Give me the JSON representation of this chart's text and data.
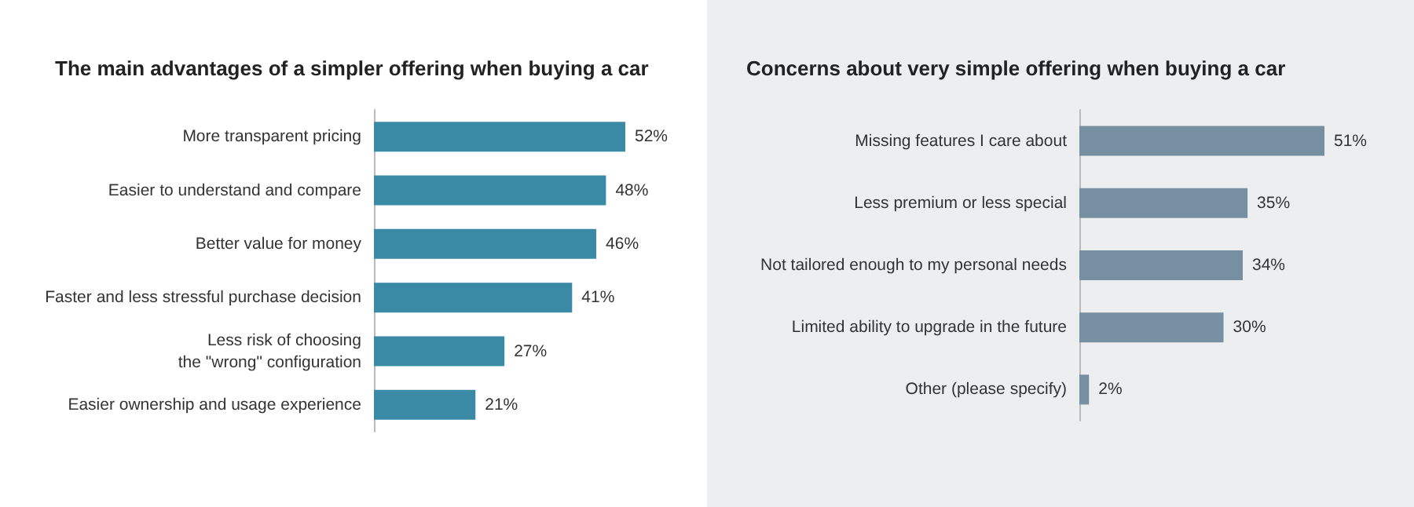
{
  "chart_data": [
    {
      "type": "bar",
      "orientation": "horizontal",
      "title": "The main advantages of a simpler offering when buying a car",
      "categories": [
        "More transparent pricing",
        "Easier to understand and compare",
        "Better value for money",
        "Faster and less stressful purchase decision",
        "Less risk of choosing\nthe \"wrong\" configuration",
        "Easier ownership and usage experience"
      ],
      "values": [
        52,
        48,
        46,
        41,
        27,
        21
      ],
      "value_labels": [
        "52%",
        "48%",
        "46%",
        "41%",
        "27%",
        "21%"
      ],
      "color": "#3a8aa6"
    },
    {
      "type": "bar",
      "orientation": "horizontal",
      "title": "Concerns about very simple offering when buying a car",
      "categories": [
        "Missing features I care about",
        "Less premium or less special",
        "Not tailored enough to my personal needs",
        "Limited ability to upgrade in the future",
        "Other (please specify)"
      ],
      "values": [
        51,
        35,
        34,
        30,
        2
      ],
      "value_labels": [
        "51%",
        "35%",
        "34%",
        "30%",
        "2%"
      ],
      "color": "#7690a1"
    }
  ]
}
